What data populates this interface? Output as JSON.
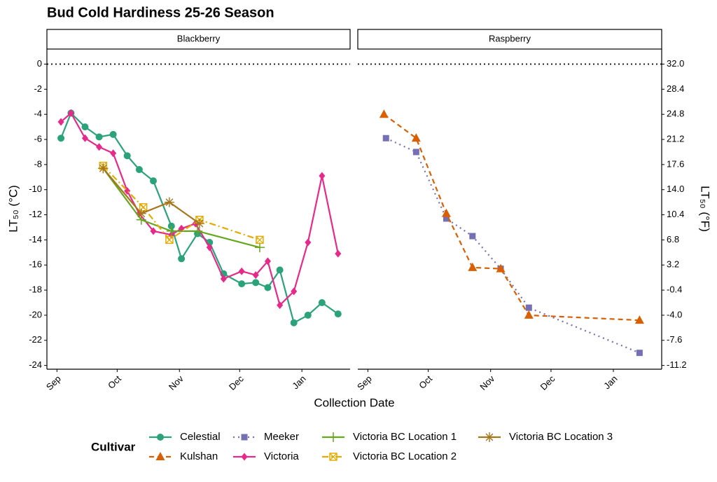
{
  "chart_data": {
    "type": "line",
    "title": "Bud Cold Hardiness 25-26 Season",
    "xlabel": "Collection Date",
    "ylabel": "LT₅₀ (°C)",
    "y2label": "LT₅₀ (°F)",
    "legend_title": "Cultivar",
    "xlim": [
      -5,
      146
    ],
    "xticks": [
      {
        "value": 0,
        "label": "Sep"
      },
      {
        "value": 30,
        "label": "Oct"
      },
      {
        "value": 61,
        "label": "Nov"
      },
      {
        "value": 91,
        "label": "Dec"
      },
      {
        "value": 122,
        "label": "Jan"
      }
    ],
    "ylim": [
      -24.3,
      1.2
    ],
    "yticks": [
      0,
      -2,
      -4,
      -6,
      -8,
      -10,
      -12,
      -14,
      -16,
      -18,
      -20,
      -22,
      -24
    ],
    "y2lim": [
      -11.74,
      34.16
    ],
    "y2ticks": [
      {
        "value": 32,
        "label": "32.0"
      },
      28.4,
      24.8,
      21.2,
      17.6,
      {
        "value": 14,
        "label": "14.0"
      },
      10.4,
      6.8,
      3.2,
      -0.4,
      {
        "value": -4,
        "label": "-4.0"
      },
      -7.6,
      -11.2
    ],
    "reference_line": 0,
    "grid": false,
    "facets": [
      {
        "title": "Blackberry",
        "series": [
          {
            "name": "Celestial",
            "color": "#2aa37a",
            "dash": "solid",
            "marker": "circle",
            "x": [
              2,
              7,
              14,
              21,
              28,
              35,
              41,
              48,
              57,
              62,
              70,
              76,
              83,
              92,
              99,
              105,
              111,
              118,
              125,
              132,
              140
            ],
            "values": [
              -5.9,
              -3.9,
              -5.0,
              -5.8,
              -5.6,
              -7.3,
              -8.4,
              -9.3,
              -12.9,
              -15.5,
              -13.5,
              -14.2,
              -16.7,
              -17.5,
              -17.4,
              -17.8,
              -16.4,
              -20.6,
              -20.0,
              -19.0,
              -19.9
            ]
          },
          {
            "name": "Victoria",
            "color": "#e7298a",
            "dash": "solid",
            "marker": "diamond",
            "x": [
              2,
              7,
              14,
              21,
              28,
              35,
              41,
              48,
              57,
              62,
              69,
              76,
              83,
              92,
              99,
              105,
              111,
              118,
              125,
              132,
              140
            ],
            "values": [
              -4.6,
              -3.9,
              -5.9,
              -6.6,
              -7.1,
              -10.1,
              -11.9,
              -13.3,
              -13.6,
              -13.1,
              -12.7,
              -14.6,
              -17.1,
              -16.5,
              -16.8,
              -15.7,
              -19.2,
              -18.1,
              -14.2,
              -8.9,
              -15.1
            ]
          },
          {
            "name": "Victoria BC Location 1",
            "color": "#66a61e",
            "dash": "solid",
            "marker": "plus",
            "x": [
              23,
              42,
              57,
              70,
              101
            ],
            "values": [
              -8.3,
              -12.4,
              -13.3,
              -13.3,
              -14.6
            ]
          },
          {
            "name": "Victoria BC Location 2",
            "color": "#e6ab02",
            "dash": "dotdash",
            "marker": "boxcross",
            "x": [
              23,
              43,
              56,
              71,
              101
            ],
            "values": [
              -8.1,
              -11.4,
              -14.0,
              -12.4,
              -14.0
            ]
          },
          {
            "name": "Victoria BC Location 3",
            "color": "#a6761d",
            "dash": "solid",
            "marker": "asterisk",
            "x": [
              23,
              42,
              56,
              71
            ],
            "values": [
              -8.3,
              -11.9,
              -11.0,
              -12.7
            ]
          }
        ]
      },
      {
        "title": "Raspberry",
        "series": [
          {
            "name": "Meeker",
            "color": "#7570b3",
            "dash": "dotted",
            "marker": "square",
            "x": [
              9,
              24,
              39,
              52,
              66,
              80,
              135
            ],
            "values": [
              -5.9,
              -7.0,
              -12.3,
              -13.7,
              -16.3,
              -19.4,
              -23.0
            ]
          },
          {
            "name": "Kulshan",
            "color": "#d95f02",
            "dash": "dashed",
            "marker": "triangle",
            "x": [
              8,
              24,
              39,
              52,
              66,
              80,
              135
            ],
            "values": [
              -4.0,
              -5.9,
              -11.9,
              -16.2,
              -16.3,
              -20.0,
              -20.4
            ]
          }
        ]
      }
    ]
  }
}
